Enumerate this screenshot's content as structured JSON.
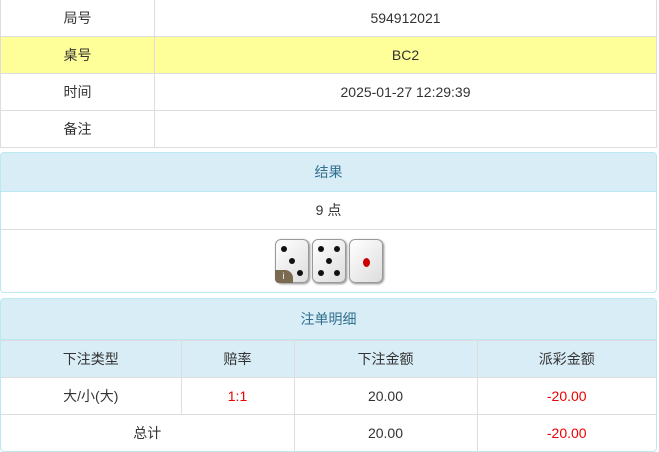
{
  "info": [
    {
      "label": "局号",
      "value": "594912021"
    },
    {
      "label": "桌号",
      "value": "BC2"
    },
    {
      "label": "时间",
      "value": "2025-01-27 12:29:39"
    },
    {
      "label": "备注",
      "value": ""
    }
  ],
  "result": {
    "title": "结果",
    "points": "9 点",
    "dice": [
      3,
      5,
      1
    ],
    "info_badge": "i"
  },
  "bets": {
    "title": "注单明细",
    "headers": [
      "下注类型",
      "赔率",
      "下注金额",
      "派彩金额"
    ],
    "rows": [
      {
        "type": "大/小(大)",
        "odds": "1:1",
        "amount": "20.00",
        "payout": "-20.00"
      }
    ],
    "total": {
      "label": "总计",
      "amount": "20.00",
      "payout": "-20.00"
    }
  },
  "colors": {
    "highlight": "#ffff99",
    "header": "#d9edf7",
    "negative": "#e00000"
  }
}
